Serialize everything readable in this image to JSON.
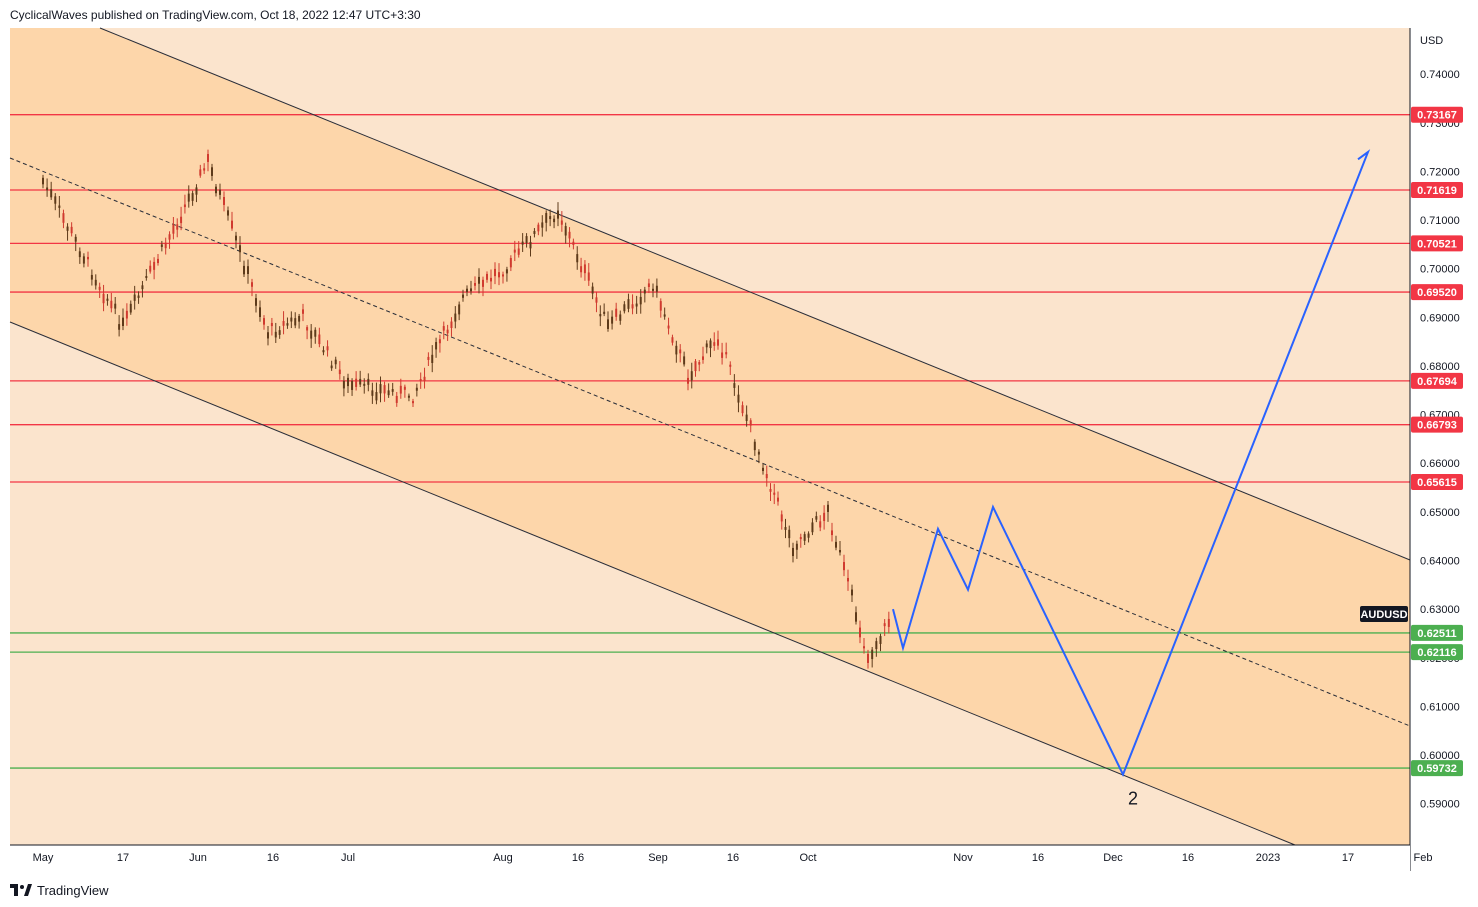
{
  "header": {
    "published_text": "CyclicalWaves published on TradingView.com, Oct 18, 2022 12:47 UTC+3:30"
  },
  "footer": {
    "brand": "TradingView"
  },
  "colors": {
    "resistance": "#f23645",
    "support": "#4caf50",
    "projection": "#2962ff",
    "candle": "#d03a2f",
    "channel_fill": "#fdd6aa",
    "background": "#fbe4cd"
  },
  "chart_data": {
    "type": "candlestick",
    "symbol": "AUDUSD",
    "currency_label": "USD",
    "y_ticks": [
      "0.74000",
      "0.73000",
      "0.72000",
      "0.71000",
      "0.70000",
      "0.69000",
      "0.68000",
      "0.67000",
      "0.66000",
      "0.65000",
      "0.64000",
      "0.63000",
      "0.62000",
      "0.61000",
      "0.60000",
      "0.59000"
    ],
    "x_ticks": [
      "May",
      "17",
      "Jun",
      "16",
      "Jul",
      "Aug",
      "16",
      "Sep",
      "16",
      "Oct",
      "Nov",
      "16",
      "Dec",
      "16",
      "2023",
      "17",
      "Feb"
    ],
    "ylim": [
      0.5815,
      0.7495
    ],
    "resistance_levels": [
      0.73167,
      0.71619,
      0.70521,
      0.6952,
      0.67694,
      0.66793,
      0.65615
    ],
    "resistance_labels": [
      "0.73167",
      "0.71619",
      "0.70521",
      "0.69520",
      "0.67694",
      "0.66793",
      "0.65615"
    ],
    "support_levels": [
      0.62511,
      0.62116,
      0.59732
    ],
    "support_labels": [
      "0.62511",
      "0.62116",
      "0.59732"
    ],
    "price_trend": {
      "dates": [
        "2022-05-01",
        "2022-05-10",
        "2022-05-17",
        "2022-05-24",
        "2022-06-03",
        "2022-06-15",
        "2022-06-22",
        "2022-07-01",
        "2022-07-14",
        "2022-07-24",
        "2022-08-01",
        "2022-08-12",
        "2022-08-22",
        "2022-08-31",
        "2022-09-07",
        "2022-09-13",
        "2022-09-22",
        "2022-09-28",
        "2022-10-05",
        "2022-10-13",
        "2022-10-18"
      ],
      "values": [
        0.718,
        0.701,
        0.688,
        0.702,
        0.722,
        0.687,
        0.69,
        0.676,
        0.674,
        0.694,
        0.7,
        0.712,
        0.688,
        0.697,
        0.678,
        0.686,
        0.66,
        0.643,
        0.65,
        0.62,
        0.629
      ]
    },
    "projection_path": {
      "dates": [
        "2022-10-18",
        "2022-10-20",
        "2022-10-27",
        "2022-11-02",
        "2022-11-07",
        "2022-12-03",
        "2023-01-21",
        "2023-01-19"
      ],
      "values": [
        0.63,
        0.622,
        0.6465,
        0.634,
        0.651,
        0.596,
        0.724,
        0.7225
      ]
    },
    "wave_label": "2",
    "channel": {
      "upper_line": true,
      "lower_line": true,
      "mid_line_dashed": true
    }
  }
}
